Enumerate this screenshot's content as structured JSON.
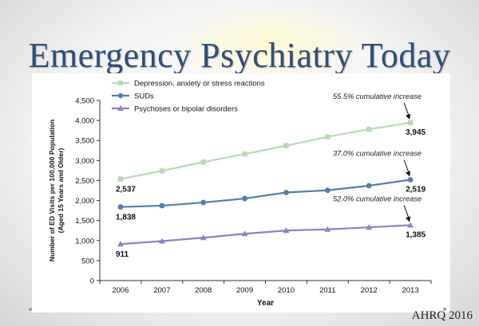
{
  "slide": {
    "title": "Emergency Psychiatry Today",
    "footer": "AHRQ 2016"
  },
  "chart_data": {
    "type": "line",
    "x": [
      2006,
      2007,
      2008,
      2009,
      2010,
      2011,
      2012,
      2013
    ],
    "xlabel": "Year",
    "ylabel": "Number of ED Visits per 100,000 Population (Aged 15 Years and Older)",
    "ylabel_lines": [
      "Number of ED Visits per 100,000 Population",
      "(Aged 15 Years and Older)"
    ],
    "ylim": [
      0,
      4500
    ],
    "yticks": [
      "0",
      "500",
      "1,000",
      "1,500",
      "2,000",
      "2,500",
      "3,000",
      "3,500",
      "4,000",
      "4,500"
    ],
    "ytick_values": [
      0,
      500,
      1000,
      1500,
      2000,
      2500,
      3000,
      3500,
      4000,
      4500
    ],
    "grid": false,
    "legend_position": "top-left",
    "series": [
      {
        "name": "Depression, anxiety or stress reactions",
        "color": "#b3dbb5",
        "marker": "square",
        "values": [
          2537,
          2740,
          2960,
          3160,
          3370,
          3590,
          3780,
          3945
        ],
        "start_label": "2,537",
        "end_label": "3,945",
        "annotation": "55.5% cumulative increase"
      },
      {
        "name": "SUDs",
        "color": "#4f7fb0",
        "marker": "circle",
        "values": [
          1838,
          1870,
          1950,
          2050,
          2200,
          2255,
          2370,
          2519
        ],
        "start_label": "1,838",
        "end_label": "2,519",
        "annotation": "37.0% cumulative increase"
      },
      {
        "name": "Psychoses or bipolar disorders",
        "color": "#8a82c8",
        "marker": "triangle",
        "values": [
          911,
          985,
          1070,
          1170,
          1250,
          1280,
          1330,
          1385
        ],
        "start_label": "911",
        "end_label": "1,385",
        "annotation": "52.0% cumulative increase"
      }
    ]
  }
}
